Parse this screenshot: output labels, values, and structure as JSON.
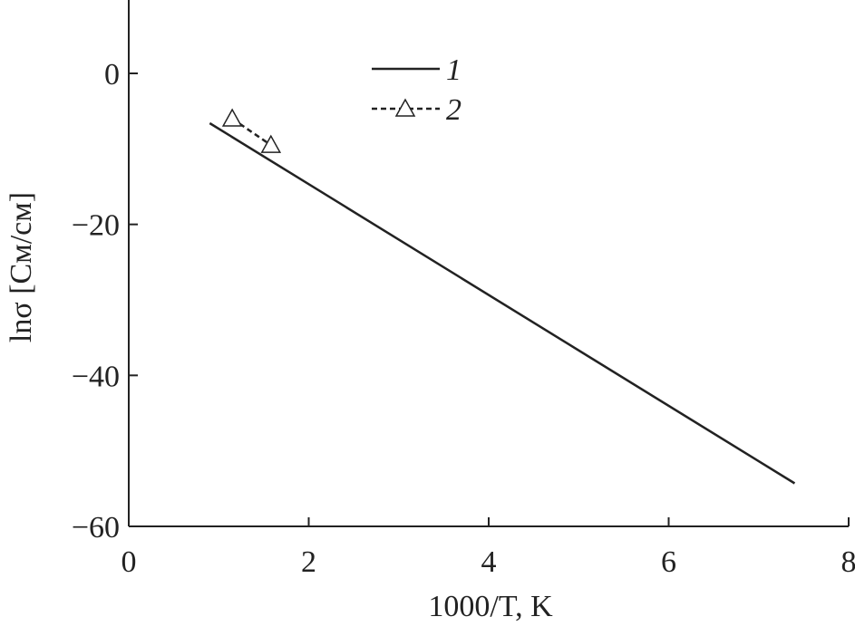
{
  "chart_data": {
    "type": "line",
    "xlabel": "1000/T, K",
    "ylabel": "lnσ [См/см]",
    "xlim": [
      0,
      8
    ],
    "ylim": [
      -60,
      10
    ],
    "xticks": [
      0,
      2,
      4,
      6,
      8
    ],
    "yticks": [
      {
        "value": 0,
        "label": "0"
      },
      {
        "value": -20,
        "label": "−20"
      },
      {
        "value": -40,
        "label": "−40"
      },
      {
        "value": -60,
        "label": "−60"
      }
    ],
    "legend": "top",
    "series": [
      {
        "name": "1",
        "color": "#222222",
        "x": [
          0.9,
          7.4
        ],
        "values": [
          -6.6,
          -54.3
        ]
      },
      {
        "name": "2",
        "color": "#222222",
        "x": [
          1.15,
          1.58
        ],
        "values": [
          -6.0,
          -9.5
        ]
      }
    ]
  }
}
